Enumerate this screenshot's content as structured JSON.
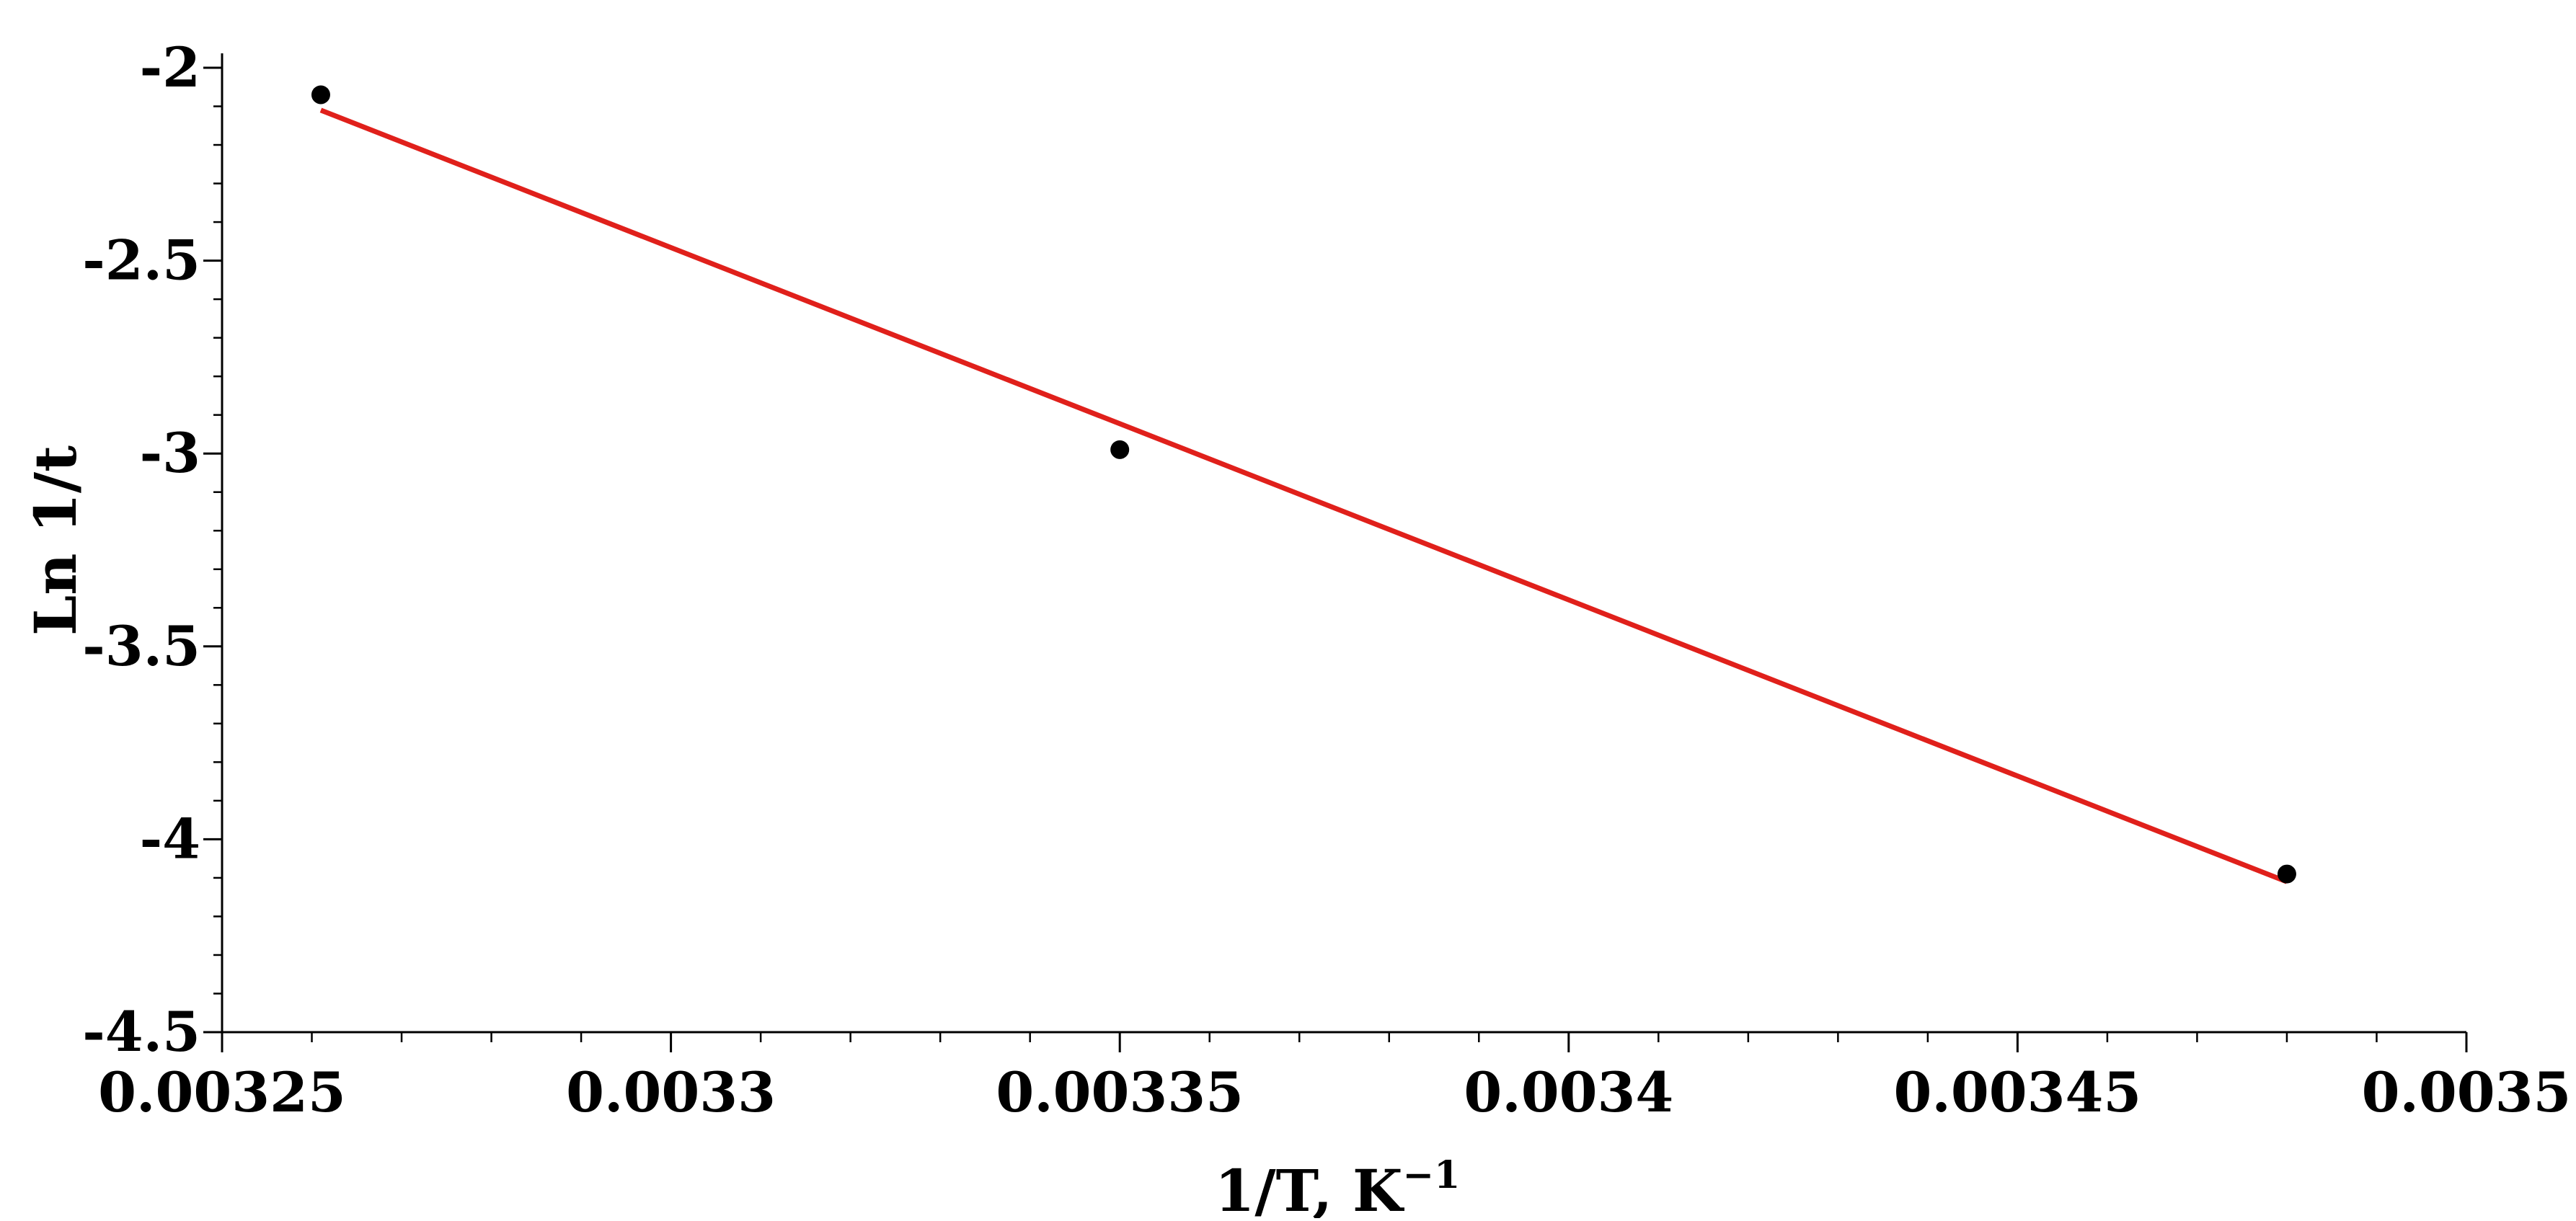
{
  "chart_data": {
    "type": "scatter",
    "title": "",
    "xlabel": "1/T, K",
    "xlabel_superscript": "−1",
    "ylabel": "Ln 1/t",
    "xlim": [
      0.00325,
      0.0035
    ],
    "ylim": [
      -4.5,
      -2
    ],
    "x_ticks": [
      0.00325,
      0.0033,
      0.00335,
      0.0034,
      0.00345,
      0.0035
    ],
    "x_tick_labels": [
      "0.00325",
      "0.0033",
      "0.00335",
      "0.0034",
      "0.00345",
      "0.0035"
    ],
    "y_ticks": [
      -2,
      -2.5,
      -3,
      -3.5,
      -4,
      -4.5
    ],
    "y_tick_labels": [
      "-2",
      "-2.5",
      "-3",
      "-3.5",
      "-4",
      "-4.5"
    ],
    "x_minor_step": 1e-05,
    "y_minor_step": 0.1,
    "grid": false,
    "legend": "none",
    "series": [
      {
        "kind": "points",
        "color": "#000000",
        "points": [
          {
            "x": 0.003261,
            "y": -2.07
          },
          {
            "x": 0.00335,
            "y": -2.99
          },
          {
            "x": 0.00348,
            "y": -4.09
          }
        ]
      },
      {
        "kind": "fit-line",
        "color": "#e0201b",
        "points": [
          {
            "x": 0.003261,
            "y": -2.11
          },
          {
            "x": 0.00348,
            "y": -4.11
          }
        ]
      }
    ]
  }
}
